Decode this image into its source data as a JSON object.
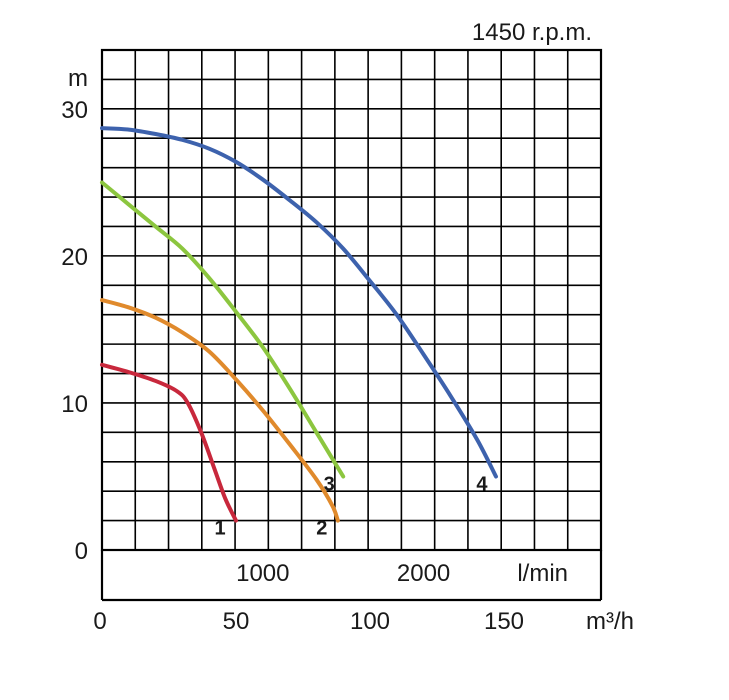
{
  "chart_data": {
    "type": "line",
    "title": "1450 r.p.m.",
    "y_unit": "m",
    "x_unit_lmin": "l/min",
    "x_unit_m3h": "m³/h",
    "y_ticks": [
      "0",
      "10",
      "20",
      "30"
    ],
    "x_ticks_lmin": [
      "1000",
      "2000"
    ],
    "x_ticks_m3h": [
      "0",
      "50",
      "100",
      "150"
    ],
    "xlim_m3h": [
      0,
      180
    ],
    "ylim_m": [
      0,
      34
    ],
    "grid": true,
    "series": [
      {
        "name": "1",
        "color": "#c8283c",
        "points": [
          [
            0,
            12.6
          ],
          [
            10,
            12.1
          ],
          [
            20,
            11.5
          ],
          [
            28,
            10.8
          ],
          [
            32,
            10.0
          ],
          [
            37,
            8.0
          ],
          [
            42,
            5.5
          ],
          [
            46,
            3.5
          ],
          [
            50,
            2.0
          ]
        ]
      },
      {
        "name": "2",
        "color": "#e08a2c",
        "points": [
          [
            0,
            17.0
          ],
          [
            10,
            16.5
          ],
          [
            20,
            15.8
          ],
          [
            30,
            14.8
          ],
          [
            40,
            13.5
          ],
          [
            50,
            11.6
          ],
          [
            60,
            9.5
          ],
          [
            70,
            7.2
          ],
          [
            80,
            4.8
          ],
          [
            86,
            3.0
          ],
          [
            88,
            2.0
          ]
        ]
      },
      {
        "name": "3",
        "color": "#8cc63f",
        "points": [
          [
            0,
            25.0
          ],
          [
            10,
            23.5
          ],
          [
            20,
            22.0
          ],
          [
            30,
            20.5
          ],
          [
            40,
            18.5
          ],
          [
            50,
            16.2
          ],
          [
            60,
            13.8
          ],
          [
            70,
            11.0
          ],
          [
            80,
            8.0
          ],
          [
            88,
            5.6
          ],
          [
            90,
            5.0
          ]
        ]
      },
      {
        "name": "4",
        "color": "#3d62ad",
        "points": [
          [
            0,
            28.7
          ],
          [
            10,
            28.6
          ],
          [
            20,
            28.3
          ],
          [
            30,
            27.9
          ],
          [
            40,
            27.3
          ],
          [
            50,
            26.4
          ],
          [
            60,
            25.2
          ],
          [
            70,
            23.8
          ],
          [
            80,
            22.3
          ],
          [
            90,
            20.5
          ],
          [
            100,
            18.3
          ],
          [
            110,
            16.0
          ],
          [
            120,
            13.3
          ],
          [
            130,
            10.5
          ],
          [
            140,
            7.5
          ],
          [
            147,
            5.0
          ]
        ]
      }
    ]
  }
}
